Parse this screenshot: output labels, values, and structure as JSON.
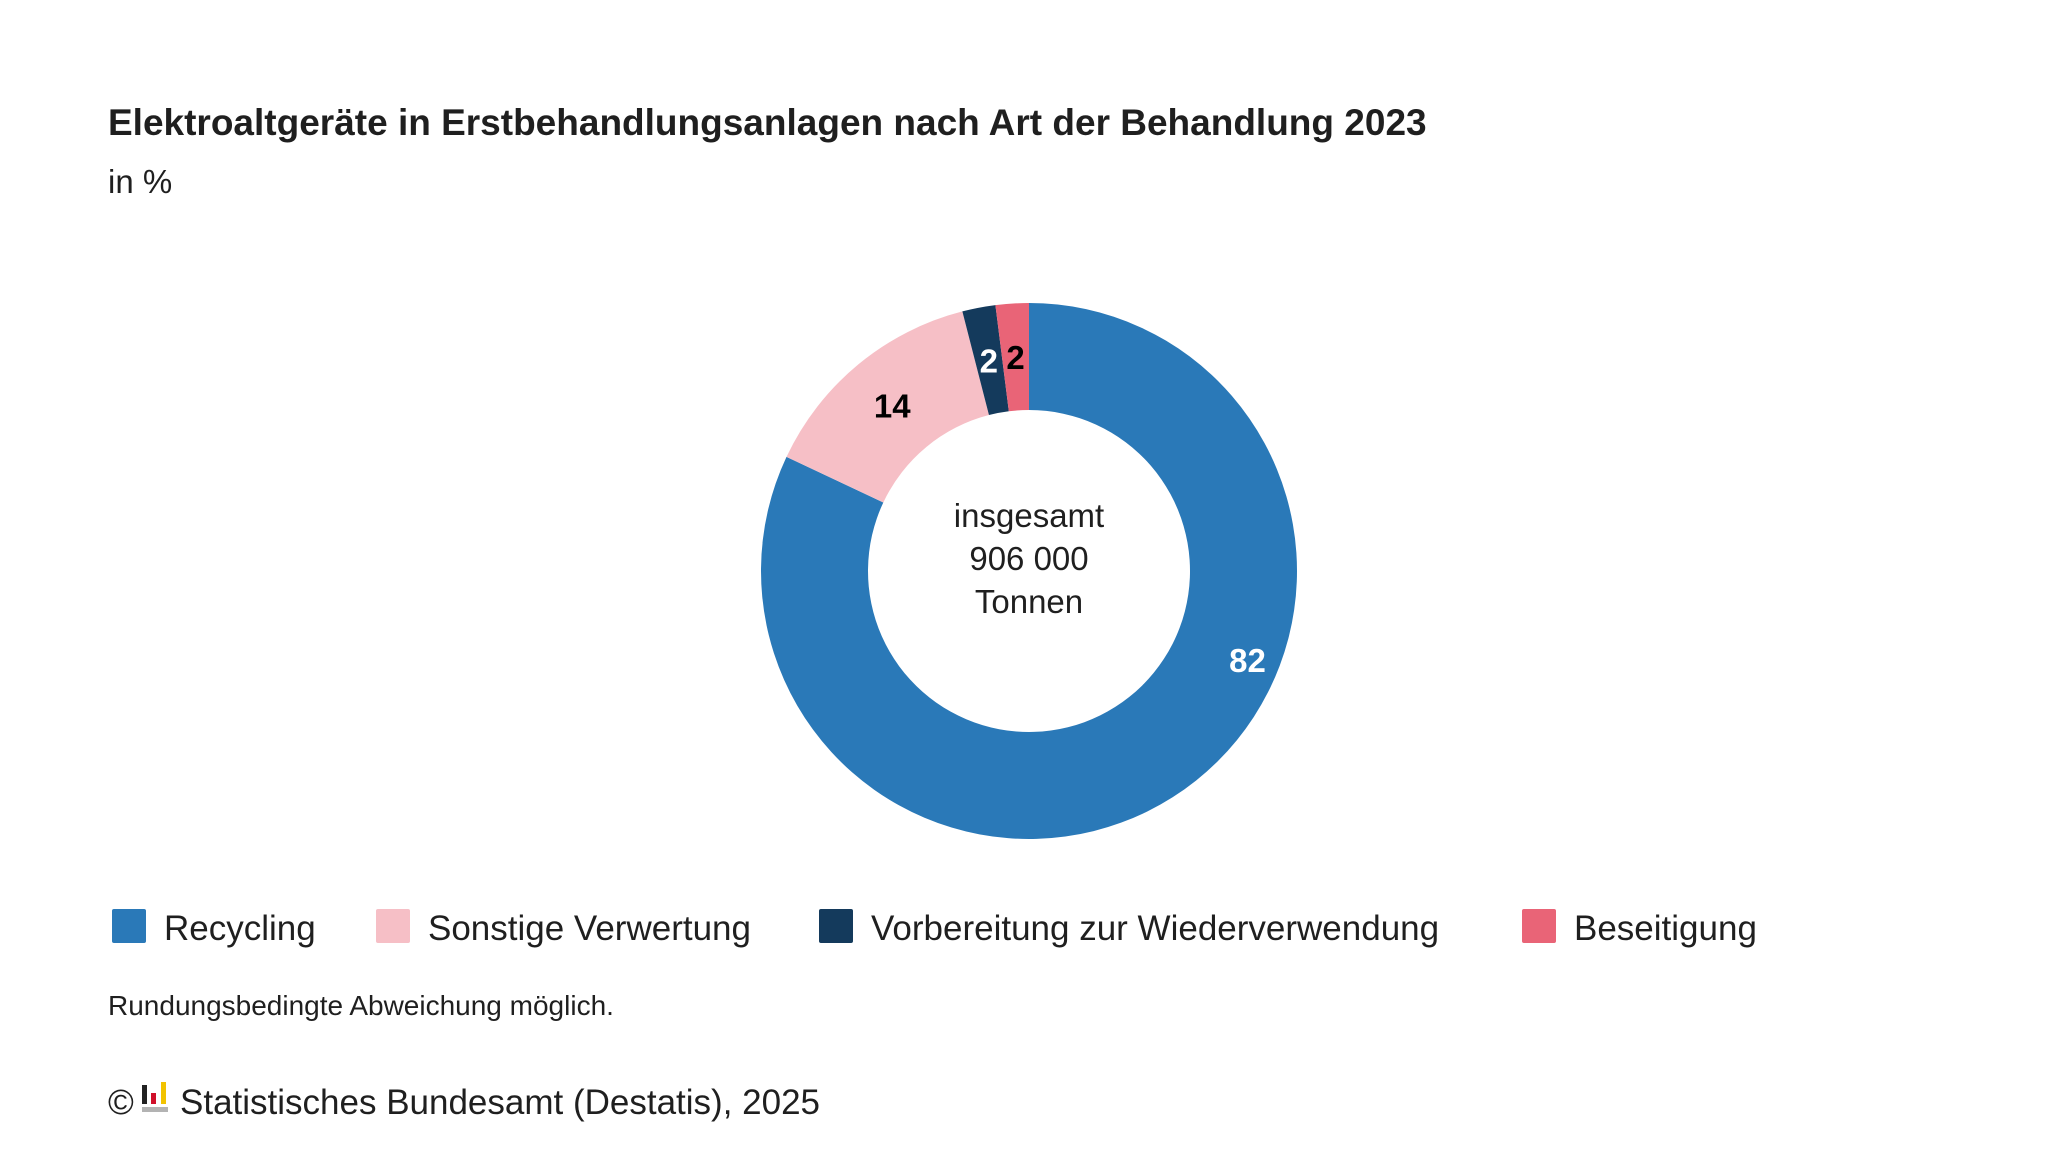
{
  "chart_data": {
    "type": "pie",
    "variant": "donut",
    "title": "Elektroaltgeräte in Erstbehandlungsanlagen nach Art der Behandlung 2023",
    "subtitle": "in %",
    "center_label": [
      "insgesamt",
      "906 000",
      "Tonnen"
    ],
    "categories": [
      "Recycling",
      "Sonstige Verwertung",
      "Vorbereitung zur Wiederverwendung",
      "Beseitigung"
    ],
    "values": [
      82,
      14,
      2,
      2
    ],
    "colors": [
      "#2a79b8",
      "#f6bfc6",
      "#143a5c",
      "#e96477"
    ],
    "label_colors": [
      "#ffffff",
      "#000000",
      "#ffffff",
      "#000000"
    ],
    "legend_position": "bottom-left",
    "note": "Rundungsbedingte Abweichung möglich.",
    "source": "Statistisches Bundesamt (Destatis), 2025"
  },
  "copyright_symbol": "©"
}
